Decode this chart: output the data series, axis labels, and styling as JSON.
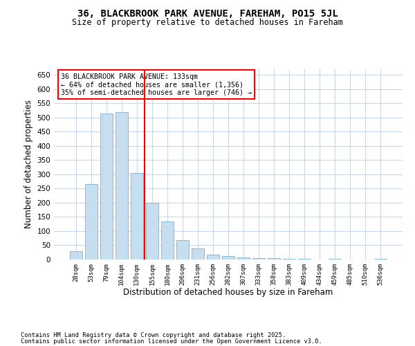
{
  "title1": "36, BLACKBROOK PARK AVENUE, FAREHAM, PO15 5JL",
  "title2": "Size of property relative to detached houses in Fareham",
  "xlabel": "Distribution of detached houses by size in Fareham",
  "ylabel": "Number of detached properties",
  "categories": [
    "28sqm",
    "53sqm",
    "79sqm",
    "104sqm",
    "130sqm",
    "155sqm",
    "180sqm",
    "206sqm",
    "231sqm",
    "256sqm",
    "282sqm",
    "307sqm",
    "333sqm",
    "358sqm",
    "383sqm",
    "409sqm",
    "434sqm",
    "459sqm",
    "485sqm",
    "510sqm",
    "536sqm"
  ],
  "values": [
    30,
    265,
    515,
    520,
    305,
    200,
    135,
    68,
    40,
    18,
    13,
    8,
    6,
    4,
    3,
    2,
    1,
    2,
    1,
    1,
    2
  ],
  "bar_color": "#c6dff0",
  "bar_edge_color": "#8ab8d8",
  "ylim": [
    0,
    670
  ],
  "yticks": [
    0,
    50,
    100,
    150,
    200,
    250,
    300,
    350,
    400,
    450,
    500,
    550,
    600,
    650
  ],
  "annotation_title": "36 BLACKBROOK PARK AVENUE: 133sqm",
  "annotation_line1": "← 64% of detached houses are smaller (1,356)",
  "annotation_line2": "35% of semi-detached houses are larger (746) →",
  "red_line_x": 4.5,
  "footer1": "Contains HM Land Registry data © Crown copyright and database right 2025.",
  "footer2": "Contains public sector information licensed under the Open Government Licence v3.0.",
  "bg_color": "#ffffff",
  "grid_color": "#c8d8e8"
}
